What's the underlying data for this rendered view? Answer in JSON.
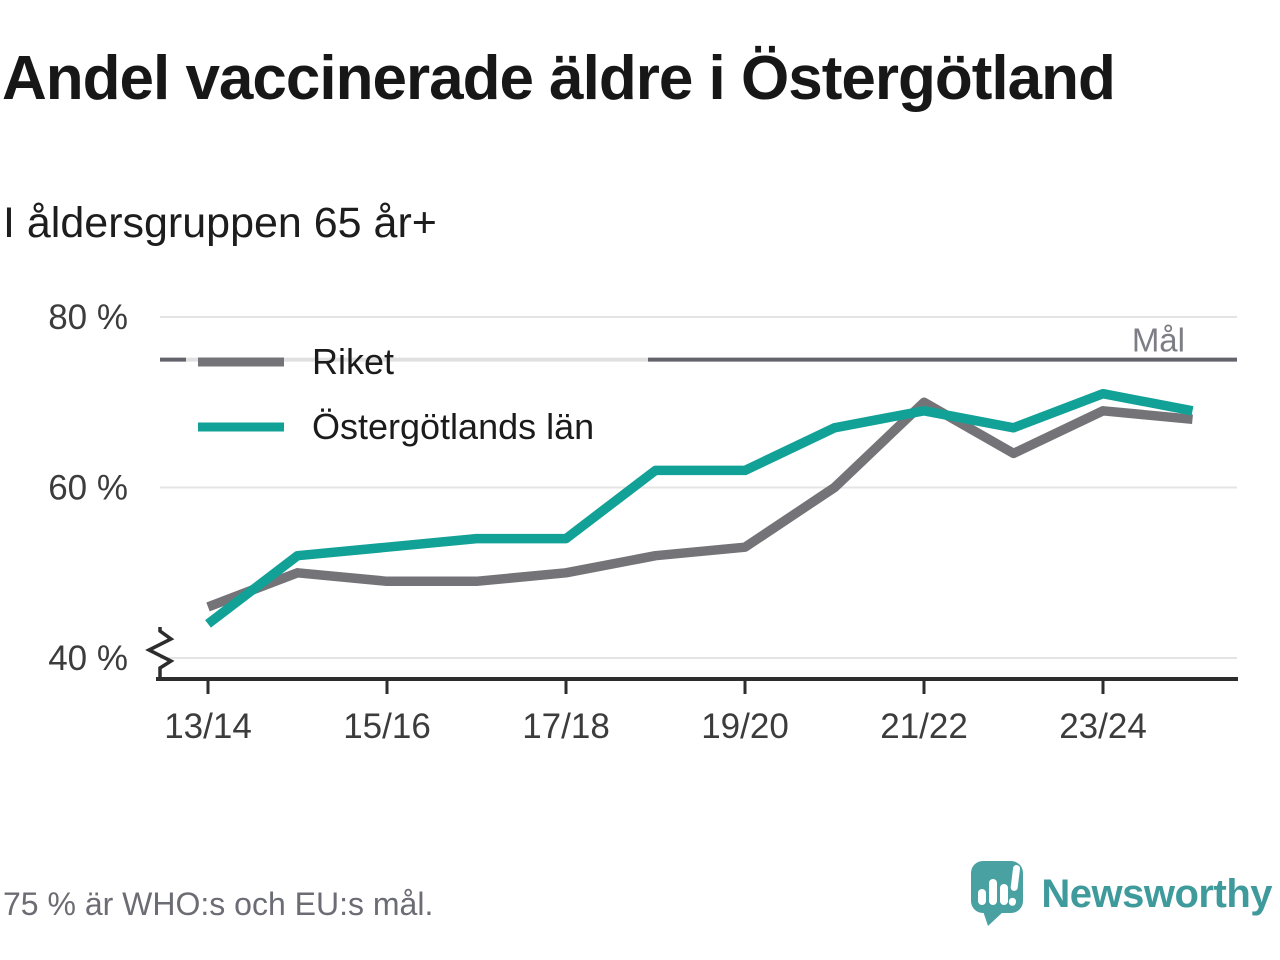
{
  "title": "Andel vaccinerade äldre i Östergötland",
  "subtitle": "I åldersgruppen 65 år+",
  "footer_note": "75 % är WHO:s och EU:s mål.",
  "branding": {
    "name": "Newsworthy",
    "icon": "newsworthy-speech-bubble-bar-chart-logo",
    "icon_color": "#4aa1a2",
    "text_color": "#3f9a9c"
  },
  "chart_data": {
    "type": "line",
    "unit": "%",
    "title": "Andel vaccinerade äldre i Östergötland",
    "subtitle": "I åldersgruppen 65 år+",
    "categories": [
      "13/14",
      "14/15",
      "15/16",
      "16/17",
      "17/18",
      "18/19",
      "19/20",
      "20/21",
      "21/22",
      "22/23",
      "23/24",
      "24/25"
    ],
    "x_tick_labels": [
      "13/14",
      "15/16",
      "17/18",
      "19/20",
      "21/22",
      "23/24"
    ],
    "series": [
      {
        "name": "Riket",
        "color": "#747478",
        "values": [
          46,
          50,
          49,
          49,
          50,
          52,
          53,
          60,
          70,
          64,
          69,
          68
        ]
      },
      {
        "name": "Östergötlands län",
        "color": "#12a197",
        "values": [
          44,
          52,
          53,
          54,
          54,
          62,
          62,
          67,
          69,
          67,
          71,
          69
        ]
      }
    ],
    "y_ticks": [
      {
        "value": 40,
        "label": "40 %"
      },
      {
        "value": 60,
        "label": "60 %"
      },
      {
        "value": 80,
        "label": "80 %"
      }
    ],
    "ylim": [
      40,
      82
    ],
    "goal_line": {
      "value": 75,
      "label": "Mål"
    },
    "grid": "horizontal",
    "axis_break": true,
    "legend_position": "top-left"
  }
}
